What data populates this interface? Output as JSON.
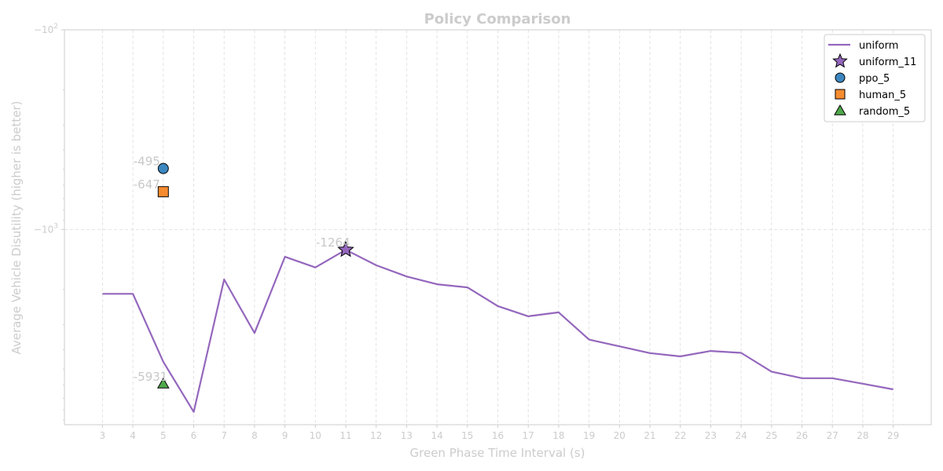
{
  "chart_data": {
    "type": "line",
    "title": "Policy Comparison",
    "xlabel": "Green Phase Time Interval (s)",
    "ylabel": "Average Vehicle Disutility (higher is better)",
    "y_scale": "symlog (negative log)",
    "ylim": [
      -9500,
      -100
    ],
    "y_ticks": [
      {
        "value": -100,
        "base": "−10",
        "exp": "2"
      },
      {
        "value": -1000,
        "base": "−10",
        "exp": "3"
      }
    ],
    "x_ticks": [
      3,
      4,
      5,
      6,
      7,
      8,
      9,
      10,
      11,
      12,
      13,
      14,
      15,
      16,
      17,
      18,
      19,
      20,
      21,
      22,
      23,
      24,
      25,
      26,
      27,
      28,
      29
    ],
    "xlim": [
      1.75,
      30.25
    ],
    "grid": true,
    "legend_position": "top-right",
    "colors": {
      "uniform": "#9467bd",
      "ppo": "#3d87c0",
      "human": "#f78c2f",
      "random": "#4fa84b"
    },
    "series": [
      {
        "name": "uniform",
        "x": [
          3,
          4,
          5,
          6,
          7,
          8,
          9,
          10,
          11,
          12,
          13,
          14,
          15,
          16,
          17,
          18,
          19,
          20,
          21,
          22,
          23,
          24,
          25,
          26,
          27,
          28,
          29
        ],
        "values": [
          -2100,
          -2100,
          -4600,
          -8200,
          -1780,
          -3300,
          -1370,
          -1550,
          -1264,
          -1510,
          -1720,
          -1880,
          -1950,
          -2420,
          -2720,
          -2600,
          -3560,
          -3850,
          -4160,
          -4320,
          -4060,
          -4150,
          -5150,
          -5560,
          -5560,
          -5920,
          -6320
        ]
      }
    ],
    "points": [
      {
        "name": "uniform_11",
        "x": 11,
        "y": -1264,
        "label": "-1264",
        "marker": "star"
      },
      {
        "name": "ppo_5",
        "x": 5,
        "y": -495,
        "label": "-495",
        "marker": "circle"
      },
      {
        "name": "human_5",
        "x": 5,
        "y": -647,
        "label": "-647",
        "marker": "square"
      },
      {
        "name": "random_5",
        "x": 5,
        "y": -5931,
        "label": "-5931",
        "marker": "triangle"
      }
    ],
    "legend": [
      "uniform",
      "uniform_11",
      "ppo_5",
      "human_5",
      "random_5"
    ]
  }
}
